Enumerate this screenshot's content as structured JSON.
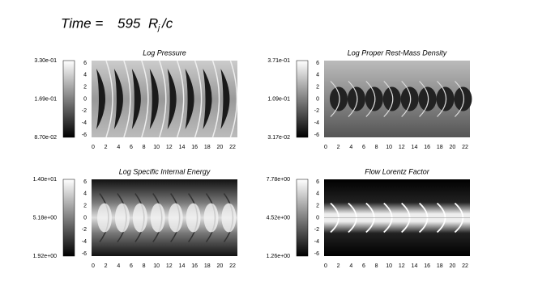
{
  "title": {
    "prefix": "Time =",
    "time": "595",
    "unit_base": "R",
    "unit_sub": "j",
    "unit_rest": "/c"
  },
  "x_ticks": [
    "0",
    "2",
    "4",
    "6",
    "8",
    "10",
    "12",
    "14",
    "16",
    "18",
    "20",
    "22"
  ],
  "y_ticks": [
    "6",
    "4",
    "2",
    "0",
    "-2",
    "-4",
    "-6"
  ],
  "panels": [
    {
      "title": "Log Pressure",
      "colorbar": [
        "3.30e-01",
        "1.69e-01",
        "8.70e-02"
      ]
    },
    {
      "title": "Log Proper Rest-Mass Density",
      "colorbar": [
        "3.71e-01",
        "1.09e-01",
        "3.17e-02"
      ]
    },
    {
      "title": "Log Specific Internal Energy",
      "colorbar": [
        "1.40e+01",
        "5.18e+00",
        "1.92e+00"
      ]
    },
    {
      "title": "Flow Lorentz Factor",
      "colorbar": [
        "7.78e+00",
        "4.52e+00",
        "1.26e+00"
      ]
    }
  ]
}
